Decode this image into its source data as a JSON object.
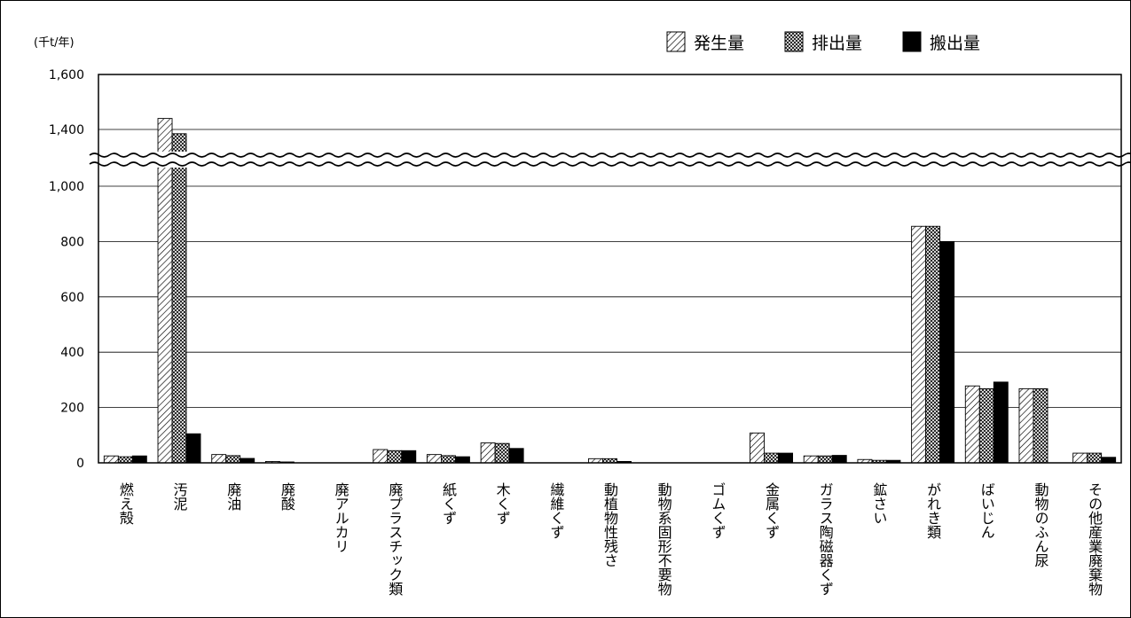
{
  "chart_data": {
    "type": "bar",
    "unit_label": "(千t/年)",
    "ylim": [
      0,
      1600
    ],
    "axis_break": [
      1150,
      1250
    ],
    "y_ticks": [
      "0",
      "200",
      "400",
      "600",
      "800",
      "1,000",
      "1,400",
      "1,600"
    ],
    "grid": true,
    "legend_position": "top-right",
    "categories": [
      "燃え殻",
      "汚泥",
      "廃油",
      "廃酸",
      "廃アルカリ",
      "廃プラスチック類",
      "紙くず",
      "木くず",
      "繊維くず",
      "動植物性残さ",
      "動物系固形不要物",
      "ゴムくず",
      "金属くず",
      "ガラス陶磁器くず",
      "鉱さい",
      "がれき類",
      "ばいじん",
      "動物のふん尿",
      "その他産業廃棄物"
    ],
    "series": [
      {
        "name": "発生量",
        "pattern": "hatch",
        "values": [
          25,
          1440,
          30,
          5,
          0,
          48,
          30,
          72,
          0,
          15,
          0,
          0,
          108,
          25,
          12,
          855,
          278,
          268,
          35
        ]
      },
      {
        "name": "排出量",
        "pattern": "crosshatch",
        "values": [
          22,
          1370,
          26,
          2,
          0,
          44,
          26,
          70,
          0,
          15,
          0,
          0,
          35,
          25,
          9,
          855,
          268,
          268,
          35
        ]
      },
      {
        "name": "搬出量",
        "pattern": "solid",
        "values": [
          25,
          105,
          16,
          0,
          0,
          44,
          22,
          52,
          0,
          5,
          0,
          0,
          35,
          27,
          9,
          800,
          292,
          0,
          20
        ]
      }
    ],
    "colors": {
      "bar_fill": "#ffffff",
      "bar_stroke": "#000000",
      "solid": "#000000",
      "grid": "#000000"
    }
  }
}
